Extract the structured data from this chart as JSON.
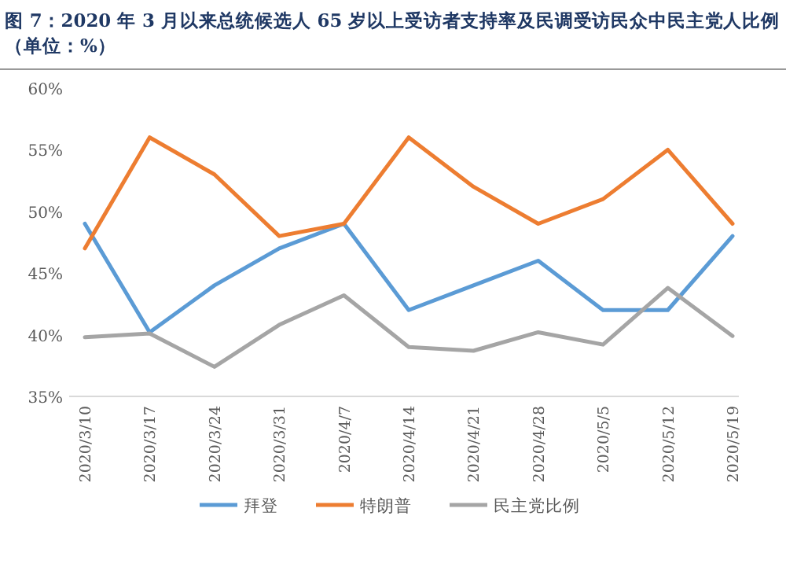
{
  "chart_data": {
    "type": "line",
    "title": "图 7：2020 年 3 月以来总统候选人 65 岁以上受访者支持率及民调受访民众中民主党人比例",
    "subtitle": "（单位：%）",
    "categories": [
      "2020/3/10",
      "2020/3/17",
      "2020/3/24",
      "2020/3/31",
      "2020/4/7",
      "2020/4/14",
      "2020/4/21",
      "2020/4/28",
      "2020/5/5",
      "2020/5/12",
      "2020/5/19"
    ],
    "series": [
      {
        "name": "拜登",
        "color": "#5b9bd5",
        "values": [
          49,
          40.2,
          44,
          47,
          49,
          42,
          44,
          46,
          42,
          42,
          48
        ]
      },
      {
        "name": "特朗普",
        "color": "#ed7d31",
        "values": [
          47,
          56,
          53,
          48,
          49,
          56,
          52,
          49,
          51,
          55,
          49
        ]
      },
      {
        "name": "民主党比例",
        "color": "#a5a5a5",
        "values": [
          39.8,
          40.1,
          37.4,
          40.8,
          43.2,
          39,
          38.7,
          40.2,
          39.2,
          43.8,
          39.9
        ]
      }
    ],
    "ylim": [
      35,
      60
    ],
    "yticks": [
      {
        "value": 35,
        "label": "35%"
      },
      {
        "value": 40,
        "label": "40%"
      },
      {
        "value": 45,
        "label": "45%"
      },
      {
        "value": 50,
        "label": "50%"
      },
      {
        "value": 55,
        "label": "55%"
      },
      {
        "value": 60,
        "label": "60%"
      }
    ],
    "grid": false,
    "legend": "bottom",
    "marker": "none",
    "line_style": "solid"
  }
}
